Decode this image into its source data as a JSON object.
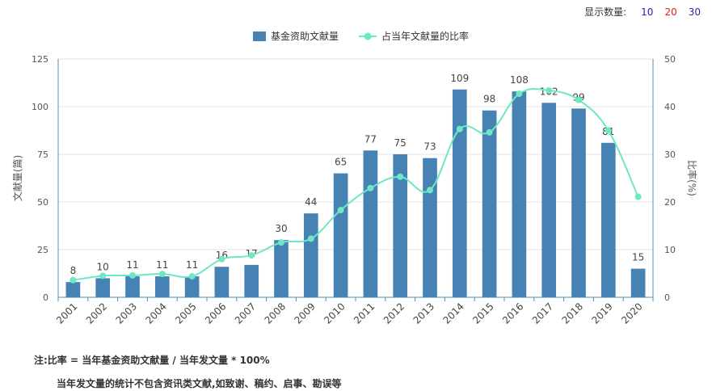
{
  "display_count": {
    "label": "显示数量:",
    "options": [
      "10",
      "20",
      "30"
    ]
  },
  "notes": {
    "line1": "注:比率 = 当年基金资助文献量 / 当年发文量 * 100%",
    "line2": "当年发文量的统计不包含资讯类文献,如致谢、稿约、启事、勘误等"
  },
  "chart_data": {
    "type": "bar+line",
    "categories": [
      "2001",
      "2002",
      "2003",
      "2004",
      "2005",
      "2006",
      "2007",
      "2008",
      "2009",
      "2010",
      "2011",
      "2012",
      "2013",
      "2014",
      "2015",
      "2016",
      "2017",
      "2018",
      "2019",
      "2020"
    ],
    "series": [
      {
        "name": "基金资助文献量",
        "type": "bar",
        "axis": "left",
        "color": "#4682b4",
        "values": [
          8,
          10,
          11,
          11,
          11,
          16,
          17,
          30,
          44,
          65,
          77,
          75,
          73,
          109,
          98,
          108,
          102,
          99,
          81,
          15
        ]
      },
      {
        "name": "占当年文献量的比率",
        "type": "line",
        "axis": "right",
        "color": "#6ee8c4",
        "values": [
          3.6,
          4.5,
          4.6,
          4.9,
          4.4,
          8.0,
          8.8,
          11.5,
          12.3,
          18.3,
          22.9,
          25.3,
          22.5,
          35.3,
          34.6,
          42.7,
          43.4,
          41.4,
          35.0,
          21.1
        ]
      }
    ],
    "ylabel": "文献量(篇)",
    "y2label": "比率(%)",
    "ylim": [
      0,
      125
    ],
    "y2lim": [
      0,
      50
    ],
    "yticks": [
      "0",
      "25",
      "50",
      "75",
      "100",
      "125"
    ],
    "y2ticks": [
      "0",
      "10",
      "20",
      "30",
      "40",
      "50"
    ],
    "grid": true,
    "legend": "top-center"
  }
}
